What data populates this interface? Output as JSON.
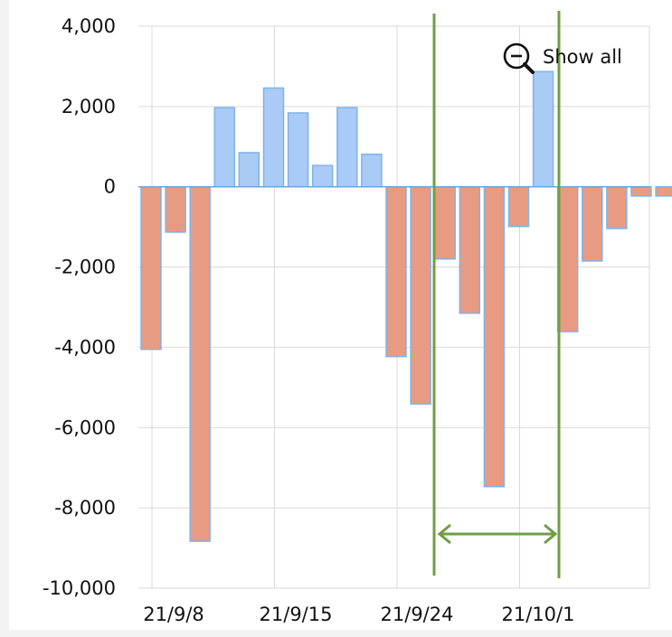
{
  "chart_data": {
    "type": "bar",
    "title": "",
    "xlabel": "",
    "ylabel": "",
    "ylim": [
      -10000,
      4000
    ],
    "yticks": [
      4000,
      2000,
      0,
      -2000,
      -4000,
      -6000,
      -8000,
      -10000
    ],
    "ytick_labels": [
      "4,000",
      "2,000",
      "0",
      "-2,000",
      "-4,000",
      "-6,000",
      "-8,000",
      "-10,000"
    ],
    "xtick_labels": [
      "21/9/8",
      "21/9/15",
      "21/9/24",
      "21/10/1"
    ],
    "grid": true,
    "categories": [
      "",
      "",
      "",
      "",
      "",
      "",
      "",
      "",
      "",
      "",
      "",
      "",
      "",
      "",
      "",
      "",
      "",
      "",
      "",
      "",
      "",
      ""
    ],
    "values": [
      -4050,
      -1130,
      -8830,
      1970,
      850,
      2460,
      1840,
      530,
      1970,
      810,
      -4230,
      -5410,
      -1800,
      -3150,
      -7470,
      -990,
      2870,
      -3610,
      -1850,
      -1040,
      -230,
      -230
    ],
    "colors": {
      "positive": "#a9cbf6",
      "negative": "#e89b83",
      "bar_edge": "#7fb3e8",
      "marker": "#6f9f45",
      "grid": "#d9d9d9"
    }
  },
  "ui": {
    "show_all_label": "Show all",
    "zoom_icon": "zoom-out-icon",
    "range_markers": "selected-range"
  }
}
